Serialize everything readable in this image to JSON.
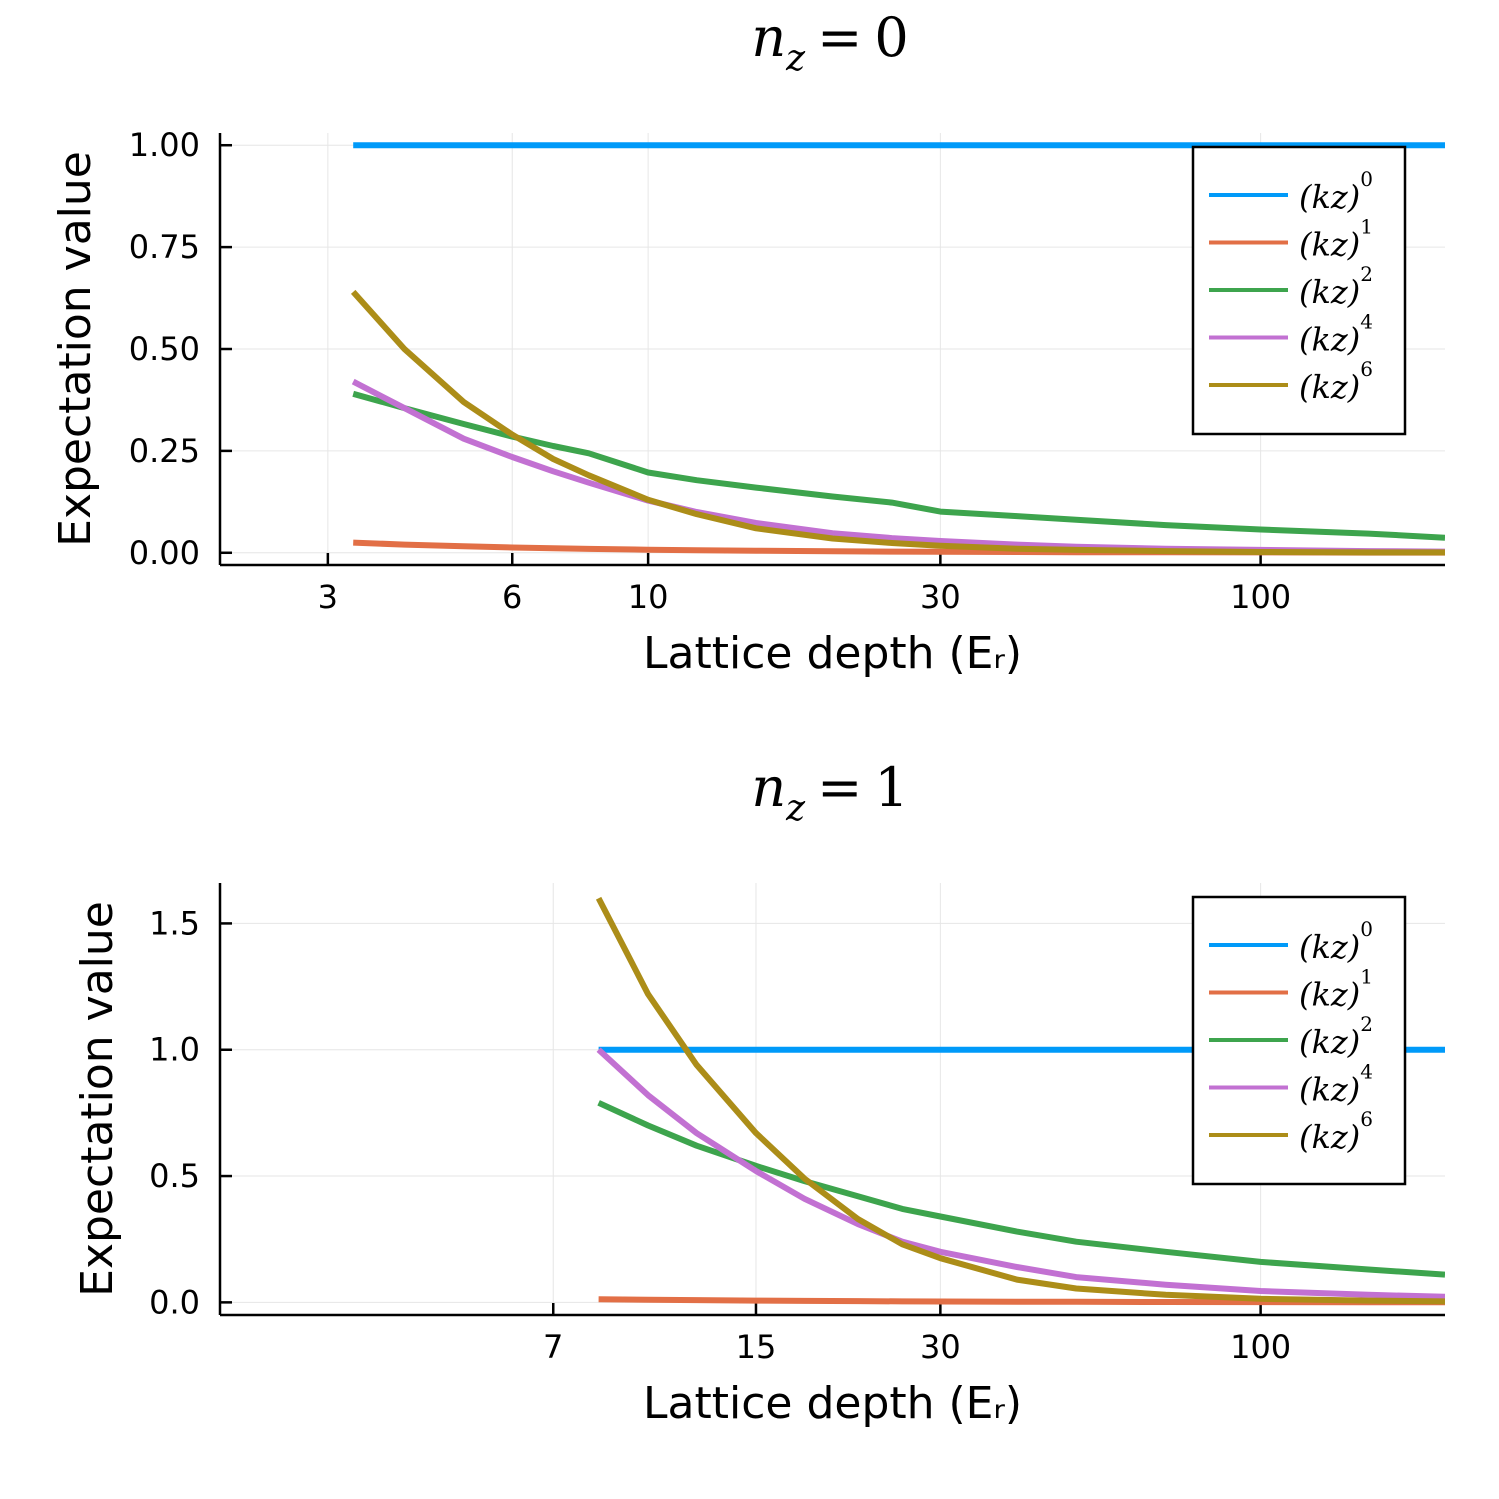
{
  "chart_data": [
    {
      "type": "line",
      "title": {
        "var": "n",
        "sub": "z",
        "rel": "=",
        "value": "0"
      },
      "xlabel": "Lattice depth (Eᵣ)",
      "ylabel": "Expectation value",
      "xscale": "log",
      "xlim": [
        2.0,
        200
      ],
      "ylim": [
        -0.03,
        1.03
      ],
      "xticks": [
        3,
        6,
        10,
        30,
        100
      ],
      "xtick_labels": [
        "3",
        "6",
        "10",
        "30",
        "100"
      ],
      "yticks": [
        0,
        0.25,
        0.5,
        0.75,
        1.0
      ],
      "ytick_labels": [
        "0.00",
        "0.25",
        "0.50",
        "0.75",
        "1.00"
      ],
      "grid": true,
      "legend": "top-right",
      "x": [
        3.3,
        4,
        5,
        6,
        7,
        8,
        10,
        12,
        15,
        20,
        25,
        30,
        40,
        50,
        70,
        100,
        150,
        200
      ],
      "series": [
        {
          "base": "(kz)",
          "power": "0",
          "color": "#009af9",
          "values": [
            1,
            1,
            1,
            1,
            1,
            1,
            1,
            1,
            1,
            1,
            1,
            1,
            1,
            1,
            1,
            1,
            1,
            1
          ]
        },
        {
          "base": "(kz)",
          "power": "1",
          "color": "#e26f46",
          "values": [
            0.025,
            0.02,
            0.016,
            0.013,
            0.011,
            0.0095,
            0.0075,
            0.0062,
            0.005,
            0.0037,
            0.003,
            0.0025,
            0.0019,
            0.0015,
            0.0011,
            0.0008,
            0.0005,
            0.0004
          ]
        },
        {
          "base": "(kz)",
          "power": "2",
          "color": "#3da44d",
          "values": [
            0.39,
            0.355,
            0.316,
            0.285,
            0.262,
            0.244,
            0.197,
            0.178,
            0.16,
            0.138,
            0.123,
            0.101,
            0.09,
            0.081,
            0.068,
            0.057,
            0.047,
            0.037
          ]
        },
        {
          "base": "(kz)",
          "power": "4",
          "color": "#c271d2",
          "values": [
            0.42,
            0.355,
            0.28,
            0.235,
            0.2,
            0.172,
            0.128,
            0.1,
            0.073,
            0.048,
            0.036,
            0.029,
            0.02,
            0.015,
            0.01,
            0.007,
            0.004,
            0.003
          ]
        },
        {
          "base": "(kz)",
          "power": "6",
          "color": "#ac8d18",
          "values": [
            0.64,
            0.5,
            0.37,
            0.29,
            0.23,
            0.19,
            0.13,
            0.095,
            0.06,
            0.035,
            0.024,
            0.017,
            0.01,
            0.007,
            0.004,
            0.002,
            0.001,
            0.001
          ]
        }
      ]
    },
    {
      "type": "line",
      "title": {
        "var": "n",
        "sub": "z",
        "rel": "=",
        "value": "1"
      },
      "xlabel": "Lattice depth (Eᵣ)",
      "ylabel": "Expectation value",
      "xscale": "log",
      "xlim": [
        2.0,
        200
      ],
      "ylim": [
        -0.05,
        1.66
      ],
      "xticks": [
        7,
        15,
        30,
        100
      ],
      "xtick_labels": [
        "7",
        "15",
        "30",
        "100"
      ],
      "yticks": [
        0,
        0.5,
        1.0,
        1.5
      ],
      "ytick_labels": [
        "0.0",
        "0.5",
        "1.0",
        "1.5"
      ],
      "grid": true,
      "legend": "top-right",
      "x": [
        8.3,
        10,
        12,
        15,
        18,
        22,
        26,
        30,
        40,
        50,
        70,
        100,
        150,
        200
      ],
      "series": [
        {
          "base": "(kz)",
          "power": "0",
          "color": "#009af9",
          "values": [
            1,
            1,
            1,
            1,
            1,
            1,
            1,
            1,
            1,
            1,
            1,
            1,
            1,
            1
          ]
        },
        {
          "base": "(kz)",
          "power": "1",
          "color": "#e26f46",
          "values": [
            0.012,
            0.01,
            0.009,
            0.007,
            0.006,
            0.005,
            0.004,
            0.0035,
            0.0028,
            0.0022,
            0.0016,
            0.0012,
            0.0008,
            0.0006
          ]
        },
        {
          "base": "(kz)",
          "power": "2",
          "color": "#3da44d",
          "values": [
            0.79,
            0.7,
            0.62,
            0.54,
            0.48,
            0.42,
            0.37,
            0.34,
            0.28,
            0.24,
            0.2,
            0.16,
            0.13,
            0.11
          ]
        },
        {
          "base": "(kz)",
          "power": "4",
          "color": "#c271d2",
          "values": [
            1.0,
            0.82,
            0.67,
            0.52,
            0.41,
            0.31,
            0.24,
            0.2,
            0.14,
            0.1,
            0.07,
            0.045,
            0.03,
            0.022
          ]
        },
        {
          "base": "(kz)",
          "power": "6",
          "color": "#ac8d18",
          "values": [
            1.6,
            1.22,
            0.94,
            0.67,
            0.49,
            0.33,
            0.23,
            0.175,
            0.09,
            0.055,
            0.03,
            0.014,
            0.007,
            0.004
          ]
        }
      ]
    }
  ]
}
